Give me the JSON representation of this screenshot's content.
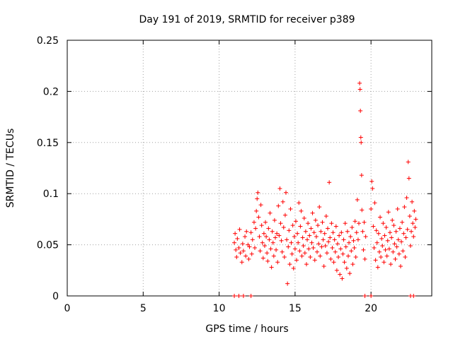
{
  "chart_data": {
    "type": "scatter",
    "title": "Day 191 of 2019, SRMTID for receiver p389",
    "xlabel": "GPS time / hours",
    "ylabel": "SRMTID / TECUs",
    "xlim": [
      0,
      24
    ],
    "ylim": [
      0,
      0.25
    ],
    "x_ticks": [
      0,
      5,
      10,
      15,
      20
    ],
    "x_tick_labels": [
      "0",
      "5",
      "10",
      "15",
      "20"
    ],
    "y_ticks": [
      0,
      0.05,
      0.1,
      0.15,
      0.2,
      0.25
    ],
    "y_tick_labels": [
      "0",
      "0.05",
      "0.1",
      "0.15",
      "0.2",
      "0.25"
    ],
    "grid": true,
    "marker": "+",
    "marker_color": "#ff0000",
    "series": [
      {
        "name": "p389",
        "points": [
          [
            11.0,
            0.0
          ],
          [
            11.3,
            0.0
          ],
          [
            11.6,
            0.0
          ],
          [
            12.1,
            0.0
          ],
          [
            19.6,
            0.0
          ],
          [
            20.0,
            0.0
          ],
          [
            22.6,
            0.0
          ],
          [
            22.8,
            0.0
          ],
          [
            11.0,
            0.052
          ],
          [
            11.05,
            0.061
          ],
          [
            11.1,
            0.045
          ],
          [
            11.15,
            0.038
          ],
          [
            11.2,
            0.056
          ],
          [
            11.3,
            0.047
          ],
          [
            11.35,
            0.065
          ],
          [
            11.4,
            0.042
          ],
          [
            11.5,
            0.033
          ],
          [
            11.55,
            0.051
          ],
          [
            11.6,
            0.044
          ],
          [
            11.7,
            0.058
          ],
          [
            11.75,
            0.039
          ],
          [
            11.8,
            0.063
          ],
          [
            11.9,
            0.05
          ],
          [
            11.95,
            0.036
          ],
          [
            12.0,
            0.048
          ],
          [
            12.1,
            0.062
          ],
          [
            12.15,
            0.041
          ],
          [
            12.2,
            0.055
          ],
          [
            12.3,
            0.072
          ],
          [
            12.35,
            0.047
          ],
          [
            12.4,
            0.066
          ],
          [
            12.45,
            0.083
          ],
          [
            12.5,
            0.095
          ],
          [
            12.55,
            0.101
          ],
          [
            12.6,
            0.077
          ],
          [
            12.65,
            0.058
          ],
          [
            12.7,
            0.044
          ],
          [
            12.75,
            0.089
          ],
          [
            12.8,
            0.069
          ],
          [
            12.85,
            0.052
          ],
          [
            12.9,
            0.037
          ],
          [
            12.95,
            0.061
          ],
          [
            13.0,
            0.049
          ],
          [
            13.05,
            0.072
          ],
          [
            13.1,
            0.058
          ],
          [
            13.15,
            0.042
          ],
          [
            13.2,
            0.034
          ],
          [
            13.25,
            0.066
          ],
          [
            13.3,
            0.055
          ],
          [
            13.35,
            0.081
          ],
          [
            13.4,
            0.046
          ],
          [
            13.45,
            0.028
          ],
          [
            13.5,
            0.063
          ],
          [
            13.55,
            0.052
          ],
          [
            13.6,
            0.039
          ],
          [
            13.65,
            0.074
          ],
          [
            13.7,
            0.057
          ],
          [
            13.75,
            0.045
          ],
          [
            13.8,
            0.061
          ],
          [
            13.85,
            0.033
          ],
          [
            13.9,
            0.088
          ],
          [
            13.95,
            0.059
          ],
          [
            14.0,
            0.105
          ],
          [
            14.05,
            0.071
          ],
          [
            14.1,
            0.054
          ],
          [
            14.15,
            0.043
          ],
          [
            14.2,
            0.092
          ],
          [
            14.25,
            0.067
          ],
          [
            14.3,
            0.038
          ],
          [
            14.35,
            0.079
          ],
          [
            14.4,
            0.101
          ],
          [
            14.45,
            0.055
          ],
          [
            14.5,
            0.012
          ],
          [
            14.55,
            0.048
          ],
          [
            14.6,
            0.064
          ],
          [
            14.65,
            0.031
          ],
          [
            14.7,
            0.085
          ],
          [
            14.75,
            0.052
          ],
          [
            14.8,
            0.041
          ],
          [
            14.85,
            0.069
          ],
          [
            14.9,
            0.027
          ],
          [
            14.95,
            0.058
          ],
          [
            15.0,
            0.046
          ],
          [
            15.05,
            0.073
          ],
          [
            15.1,
            0.035
          ],
          [
            15.15,
            0.061
          ],
          [
            15.2,
            0.052
          ],
          [
            15.25,
            0.091
          ],
          [
            15.3,
            0.044
          ],
          [
            15.35,
            0.068
          ],
          [
            15.4,
            0.083
          ],
          [
            15.45,
            0.039
          ],
          [
            15.5,
            0.057
          ],
          [
            15.55,
            0.049
          ],
          [
            15.6,
            0.076
          ],
          [
            15.65,
            0.042
          ],
          [
            15.7,
            0.063
          ],
          [
            15.75,
            0.031
          ],
          [
            15.8,
            0.055
          ],
          [
            15.85,
            0.071
          ],
          [
            15.9,
            0.046
          ],
          [
            15.95,
            0.059
          ],
          [
            16.0,
            0.038
          ],
          [
            16.05,
            0.066
          ],
          [
            16.1,
            0.052
          ],
          [
            16.15,
            0.081
          ],
          [
            16.2,
            0.047
          ],
          [
            16.25,
            0.062
          ],
          [
            16.3,
            0.035
          ],
          [
            16.35,
            0.074
          ],
          [
            16.4,
            0.058
          ],
          [
            16.45,
            0.043
          ],
          [
            16.5,
            0.069
          ],
          [
            16.55,
            0.051
          ],
          [
            16.6,
            0.087
          ],
          [
            16.65,
            0.039
          ],
          [
            16.7,
            0.063
          ],
          [
            16.75,
            0.048
          ],
          [
            16.8,
            0.072
          ],
          [
            16.85,
            0.055
          ],
          [
            16.9,
            0.029
          ],
          [
            16.95,
            0.061
          ],
          [
            17.0,
            0.049
          ],
          [
            17.05,
            0.078
          ],
          [
            17.1,
            0.042
          ],
          [
            17.15,
            0.066
          ],
          [
            17.2,
            0.053
          ],
          [
            17.25,
            0.111
          ],
          [
            17.3,
            0.057
          ],
          [
            17.35,
            0.036
          ],
          [
            17.4,
            0.071
          ],
          [
            17.45,
            0.047
          ],
          [
            17.5,
            0.062
          ],
          [
            17.55,
            0.033
          ],
          [
            17.6,
            0.055
          ],
          [
            17.65,
            0.043
          ],
          [
            17.7,
            0.068
          ],
          [
            17.75,
            0.025
          ],
          [
            17.8,
            0.051
          ],
          [
            17.85,
            0.038
          ],
          [
            17.9,
            0.059
          ],
          [
            17.95,
            0.021
          ],
          [
            18.0,
            0.046
          ],
          [
            18.05,
            0.062
          ],
          [
            18.1,
            0.017
          ],
          [
            18.15,
            0.041
          ],
          [
            18.2,
            0.055
          ],
          [
            18.25,
            0.033
          ],
          [
            18.3,
            0.071
          ],
          [
            18.35,
            0.048
          ],
          [
            18.4,
            0.027
          ],
          [
            18.45,
            0.063
          ],
          [
            18.5,
            0.039
          ],
          [
            18.55,
            0.052
          ],
          [
            18.6,
            0.022
          ],
          [
            18.65,
            0.058
          ],
          [
            18.7,
            0.044
          ],
          [
            18.75,
            0.067
          ],
          [
            18.8,
            0.031
          ],
          [
            18.85,
            0.054
          ],
          [
            18.9,
            0.047
          ],
          [
            18.95,
            0.073
          ],
          [
            19.0,
            0.038
          ],
          [
            19.05,
            0.062
          ],
          [
            19.1,
            0.094
          ],
          [
            19.15,
            0.055
          ],
          [
            19.2,
            0.071
          ],
          [
            19.25,
            0.208
          ],
          [
            19.28,
            0.202
          ],
          [
            19.3,
            0.181
          ],
          [
            19.33,
            0.155
          ],
          [
            19.35,
            0.15
          ],
          [
            19.38,
            0.118
          ],
          [
            19.4,
            0.084
          ],
          [
            19.45,
            0.063
          ],
          [
            19.5,
            0.045
          ],
          [
            19.55,
            0.072
          ],
          [
            19.6,
            0.036
          ],
          [
            19.65,
            0.058
          ],
          [
            20.0,
            0.085
          ],
          [
            20.05,
            0.112
          ],
          [
            20.1,
            0.105
          ],
          [
            20.15,
            0.068
          ],
          [
            20.2,
            0.047
          ],
          [
            20.25,
            0.091
          ],
          [
            20.3,
            0.035
          ],
          [
            20.35,
            0.064
          ],
          [
            20.4,
            0.052
          ],
          [
            20.45,
            0.028
          ],
          [
            20.5,
            0.061
          ],
          [
            20.55,
            0.043
          ],
          [
            20.6,
            0.077
          ],
          [
            20.65,
            0.038
          ],
          [
            20.7,
            0.056
          ],
          [
            20.75,
            0.049
          ],
          [
            20.8,
            0.071
          ],
          [
            20.85,
            0.033
          ],
          [
            20.9,
            0.059
          ],
          [
            20.95,
            0.045
          ],
          [
            21.0,
            0.067
          ],
          [
            21.05,
            0.039
          ],
          [
            21.1,
            0.054
          ],
          [
            21.15,
            0.082
          ],
          [
            21.2,
            0.046
          ],
          [
            21.25,
            0.062
          ],
          [
            21.3,
            0.031
          ],
          [
            21.35,
            0.057
          ],
          [
            21.4,
            0.074
          ],
          [
            21.45,
            0.043
          ],
          [
            21.5,
            0.069
          ],
          [
            21.55,
            0.051
          ],
          [
            21.6,
            0.036
          ],
          [
            21.65,
            0.063
          ],
          [
            21.7,
            0.048
          ],
          [
            21.75,
            0.085
          ],
          [
            21.8,
            0.055
          ],
          [
            21.85,
            0.041
          ],
          [
            21.9,
            0.066
          ],
          [
            21.95,
            0.029
          ],
          [
            22.0,
            0.053
          ],
          [
            22.05,
            0.072
          ],
          [
            22.1,
            0.044
          ],
          [
            22.15,
            0.061
          ],
          [
            22.2,
            0.087
          ],
          [
            22.25,
            0.038
          ],
          [
            22.3,
            0.057
          ],
          [
            22.35,
            0.096
          ],
          [
            22.4,
            0.065
          ],
          [
            22.45,
            0.131
          ],
          [
            22.5,
            0.115
          ],
          [
            22.55,
            0.078
          ],
          [
            22.6,
            0.049
          ],
          [
            22.65,
            0.063
          ],
          [
            22.7,
            0.092
          ],
          [
            22.75,
            0.071
          ],
          [
            22.8,
            0.058
          ],
          [
            22.85,
            0.083
          ],
          [
            22.9,
            0.067
          ],
          [
            22.95,
            0.075
          ]
        ]
      }
    ]
  }
}
